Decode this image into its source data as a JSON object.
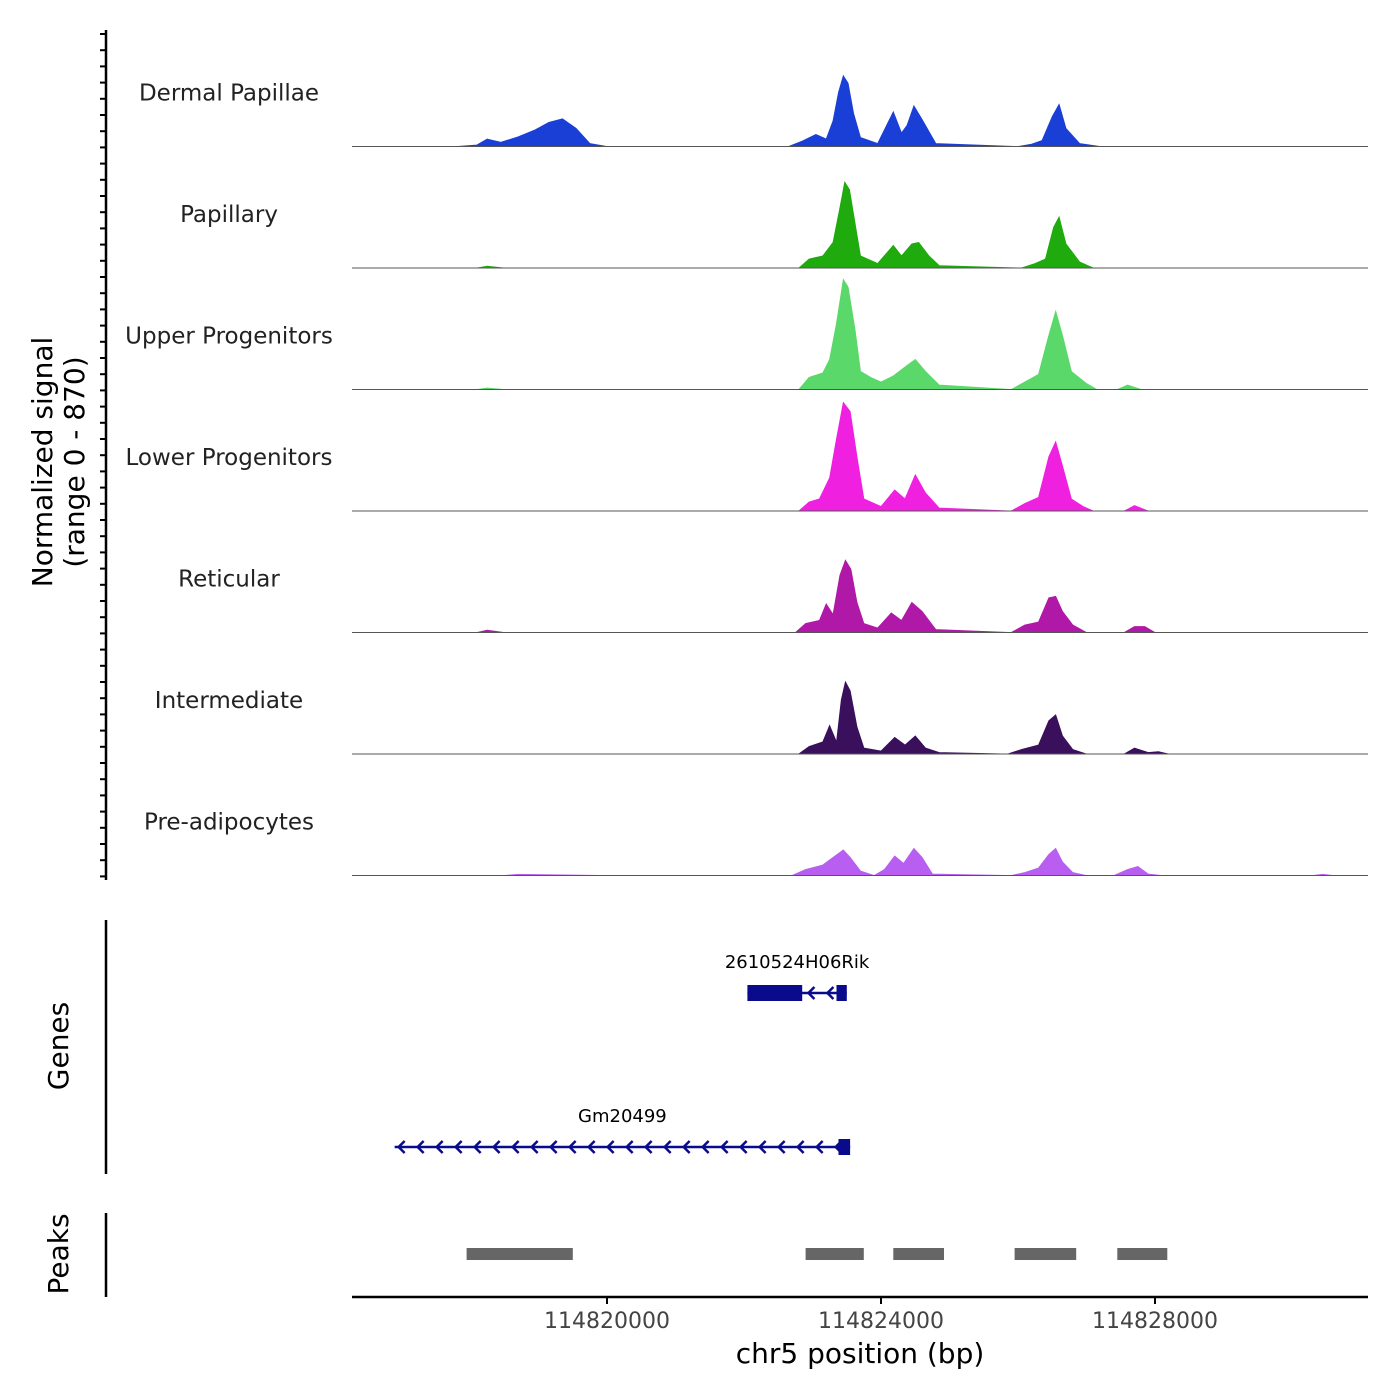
{
  "chart_data": {
    "type": "area",
    "title": "",
    "ylabel": "Normalized signal",
    "ylabel_range": "(range 0 - 870)",
    "ylim": [
      0,
      870
    ],
    "xlim": [
      114816200,
      114831100
    ],
    "xlabel": "chr5 position (bp)",
    "xticks": [
      114820000,
      114824000,
      114828000
    ],
    "xtick_labels": [
      "114820000",
      "114824000",
      "114828000"
    ],
    "tracks": [
      {
        "name": "Dermal Papillae",
        "color": "#1a3fd6",
        "points": [
          [
            114816200,
            0
          ],
          [
            114817800,
            0
          ],
          [
            114818100,
            5
          ],
          [
            114818250,
            25
          ],
          [
            114818450,
            14
          ],
          [
            114818700,
            32
          ],
          [
            114818950,
            55
          ],
          [
            114819150,
            80
          ],
          [
            114819350,
            92
          ],
          [
            114819550,
            60
          ],
          [
            114819750,
            10
          ],
          [
            114820000,
            0
          ],
          [
            114822650,
            0
          ],
          [
            114822850,
            18
          ],
          [
            114823050,
            40
          ],
          [
            114823200,
            25
          ],
          [
            114823300,
            85
          ],
          [
            114823380,
            180
          ],
          [
            114823450,
            235
          ],
          [
            114823520,
            210
          ],
          [
            114823600,
            110
          ],
          [
            114823700,
            30
          ],
          [
            114823950,
            10
          ],
          [
            114824180,
            115
          ],
          [
            114824300,
            45
          ],
          [
            114824380,
            70
          ],
          [
            114824480,
            135
          ],
          [
            114824600,
            90
          ],
          [
            114824800,
            10
          ],
          [
            114826000,
            0
          ],
          [
            114826200,
            8
          ],
          [
            114826350,
            20
          ],
          [
            114826500,
            100
          ],
          [
            114826600,
            140
          ],
          [
            114826700,
            60
          ],
          [
            114826900,
            10
          ],
          [
            114827200,
            0
          ],
          [
            114831100,
            0
          ]
        ]
      },
      {
        "name": "Papillary",
        "color": "#1faa0e",
        "points": [
          [
            114816200,
            0
          ],
          [
            114818100,
            0
          ],
          [
            114818250,
            6
          ],
          [
            114818500,
            0
          ],
          [
            114822800,
            0
          ],
          [
            114822950,
            30
          ],
          [
            114823150,
            40
          ],
          [
            114823300,
            85
          ],
          [
            114823400,
            200
          ],
          [
            114823470,
            285
          ],
          [
            114823540,
            260
          ],
          [
            114823620,
            150
          ],
          [
            114823700,
            40
          ],
          [
            114823950,
            15
          ],
          [
            114824180,
            75
          ],
          [
            114824300,
            40
          ],
          [
            114824450,
            80
          ],
          [
            114824550,
            85
          ],
          [
            114824700,
            40
          ],
          [
            114824850,
            8
          ],
          [
            114826050,
            0
          ],
          [
            114826250,
            15
          ],
          [
            114826400,
            30
          ],
          [
            114826520,
            135
          ],
          [
            114826600,
            170
          ],
          [
            114826700,
            80
          ],
          [
            114826900,
            20
          ],
          [
            114827100,
            0
          ],
          [
            114831100,
            0
          ]
        ]
      },
      {
        "name": "Upper Progenitors",
        "color": "#5ad86a",
        "points": [
          [
            114816200,
            0
          ],
          [
            114818100,
            0
          ],
          [
            114818250,
            5
          ],
          [
            114818500,
            0
          ],
          [
            114822800,
            0
          ],
          [
            114822950,
            40
          ],
          [
            114823150,
            55
          ],
          [
            114823250,
            100
          ],
          [
            114823350,
            220
          ],
          [
            114823450,
            365
          ],
          [
            114823520,
            340
          ],
          [
            114823620,
            200
          ],
          [
            114823700,
            60
          ],
          [
            114823850,
            40
          ],
          [
            114824000,
            25
          ],
          [
            114824180,
            45
          ],
          [
            114824350,
            75
          ],
          [
            114824500,
            100
          ],
          [
            114824650,
            60
          ],
          [
            114824850,
            15
          ],
          [
            114825900,
            0
          ],
          [
            114826100,
            25
          ],
          [
            114826300,
            50
          ],
          [
            114826450,
            180
          ],
          [
            114826550,
            260
          ],
          [
            114826650,
            180
          ],
          [
            114826780,
            60
          ],
          [
            114827000,
            20
          ],
          [
            114827150,
            0
          ],
          [
            114827450,
            0
          ],
          [
            114827600,
            15
          ],
          [
            114827800,
            0
          ],
          [
            114831100,
            0
          ]
        ]
      },
      {
        "name": "Lower Progenitors",
        "color": "#f020e0",
        "points": [
          [
            114816200,
            0
          ],
          [
            114822800,
            0
          ],
          [
            114822950,
            30
          ],
          [
            114823100,
            40
          ],
          [
            114823250,
            110
          ],
          [
            114823350,
            240
          ],
          [
            114823450,
            360
          ],
          [
            114823550,
            330
          ],
          [
            114823650,
            180
          ],
          [
            114823750,
            40
          ],
          [
            114824000,
            15
          ],
          [
            114824200,
            70
          ],
          [
            114824350,
            40
          ],
          [
            114824500,
            120
          ],
          [
            114824650,
            60
          ],
          [
            114824850,
            10
          ],
          [
            114825900,
            0
          ],
          [
            114826100,
            25
          ],
          [
            114826300,
            45
          ],
          [
            114826450,
            180
          ],
          [
            114826550,
            230
          ],
          [
            114826650,
            150
          ],
          [
            114826780,
            40
          ],
          [
            114826950,
            15
          ],
          [
            114827100,
            0
          ],
          [
            114827550,
            0
          ],
          [
            114827700,
            18
          ],
          [
            114827900,
            0
          ],
          [
            114831100,
            0
          ]
        ]
      },
      {
        "name": "Reticular",
        "color": "#b018a8",
        "points": [
          [
            114816200,
            0
          ],
          [
            114818100,
            0
          ],
          [
            114818250,
            8
          ],
          [
            114818500,
            0
          ],
          [
            114822750,
            0
          ],
          [
            114822900,
            30
          ],
          [
            114823100,
            40
          ],
          [
            114823200,
            95
          ],
          [
            114823300,
            60
          ],
          [
            114823400,
            190
          ],
          [
            114823480,
            240
          ],
          [
            114823560,
            210
          ],
          [
            114823650,
            100
          ],
          [
            114823750,
            30
          ],
          [
            114823950,
            15
          ],
          [
            114824150,
            65
          ],
          [
            114824300,
            40
          ],
          [
            114824450,
            100
          ],
          [
            114824600,
            70
          ],
          [
            114824800,
            10
          ],
          [
            114825900,
            0
          ],
          [
            114826100,
            25
          ],
          [
            114826300,
            35
          ],
          [
            114826450,
            115
          ],
          [
            114826550,
            120
          ],
          [
            114826650,
            70
          ],
          [
            114826800,
            25
          ],
          [
            114827000,
            0
          ],
          [
            114827550,
            0
          ],
          [
            114827700,
            20
          ],
          [
            114827850,
            20
          ],
          [
            114828000,
            0
          ],
          [
            114831100,
            0
          ]
        ]
      },
      {
        "name": "Intermediate",
        "color": "#3a0f5c",
        "points": [
          [
            114816200,
            0
          ],
          [
            114822800,
            0
          ],
          [
            114822950,
            25
          ],
          [
            114823150,
            40
          ],
          [
            114823250,
            95
          ],
          [
            114823350,
            40
          ],
          [
            114823420,
            180
          ],
          [
            114823480,
            240
          ],
          [
            114823550,
            210
          ],
          [
            114823650,
            90
          ],
          [
            114823750,
            20
          ],
          [
            114824000,
            10
          ],
          [
            114824200,
            55
          ],
          [
            114824350,
            30
          ],
          [
            114824500,
            60
          ],
          [
            114824650,
            20
          ],
          [
            114824850,
            5
          ],
          [
            114825850,
            0
          ],
          [
            114826050,
            15
          ],
          [
            114826300,
            30
          ],
          [
            114826450,
            110
          ],
          [
            114826550,
            130
          ],
          [
            114826650,
            60
          ],
          [
            114826800,
            15
          ],
          [
            114827000,
            0
          ],
          [
            114827550,
            0
          ],
          [
            114827700,
            20
          ],
          [
            114827900,
            5
          ],
          [
            114828050,
            8
          ],
          [
            114828200,
            0
          ],
          [
            114831100,
            0
          ]
        ]
      },
      {
        "name": "Pre-adipocytes",
        "color": "#b85ef0",
        "points": [
          [
            114816200,
            0
          ],
          [
            114818500,
            0
          ],
          [
            114818700,
            4
          ],
          [
            114820000,
            0
          ],
          [
            114822700,
            0
          ],
          [
            114822900,
            20
          ],
          [
            114823150,
            35
          ],
          [
            114823300,
            60
          ],
          [
            114823450,
            85
          ],
          [
            114823550,
            60
          ],
          [
            114823700,
            15
          ],
          [
            114823900,
            0
          ],
          [
            114824050,
            20
          ],
          [
            114824200,
            65
          ],
          [
            114824330,
            40
          ],
          [
            114824480,
            90
          ],
          [
            114824600,
            60
          ],
          [
            114824750,
            5
          ],
          [
            114825900,
            0
          ],
          [
            114826100,
            10
          ],
          [
            114826300,
            25
          ],
          [
            114826450,
            70
          ],
          [
            114826550,
            90
          ],
          [
            114826650,
            45
          ],
          [
            114826800,
            10
          ],
          [
            114827000,
            0
          ],
          [
            114827400,
            0
          ],
          [
            114827600,
            20
          ],
          [
            114827750,
            30
          ],
          [
            114827900,
            5
          ],
          [
            114828100,
            0
          ],
          [
            114830300,
            0
          ],
          [
            114830450,
            4
          ],
          [
            114830600,
            0
          ],
          [
            114831100,
            0
          ]
        ]
      }
    ],
    "genes": [
      {
        "name": "2610524H06Rik",
        "color": "#0a0a8c",
        "strand": "-",
        "start": 114822050,
        "end": 114823500,
        "exons": [
          [
            114822050,
            114822850
          ],
          [
            114823350,
            114823500
          ]
        ]
      },
      {
        "name": "Gm20499",
        "color": "#0a0a8c",
        "strand": "-",
        "start": 114816900,
        "end": 114823550,
        "exons": [
          [
            114823380,
            114823550
          ]
        ]
      }
    ],
    "peaks_label": "Peaks",
    "genes_label": "Genes",
    "peaks": [
      [
        114817950,
        114819500
      ],
      [
        114822900,
        114823750
      ],
      [
        114824180,
        114824920
      ],
      [
        114825950,
        114826850
      ],
      [
        114827450,
        114828180
      ]
    ],
    "peak_color": "#666666"
  }
}
